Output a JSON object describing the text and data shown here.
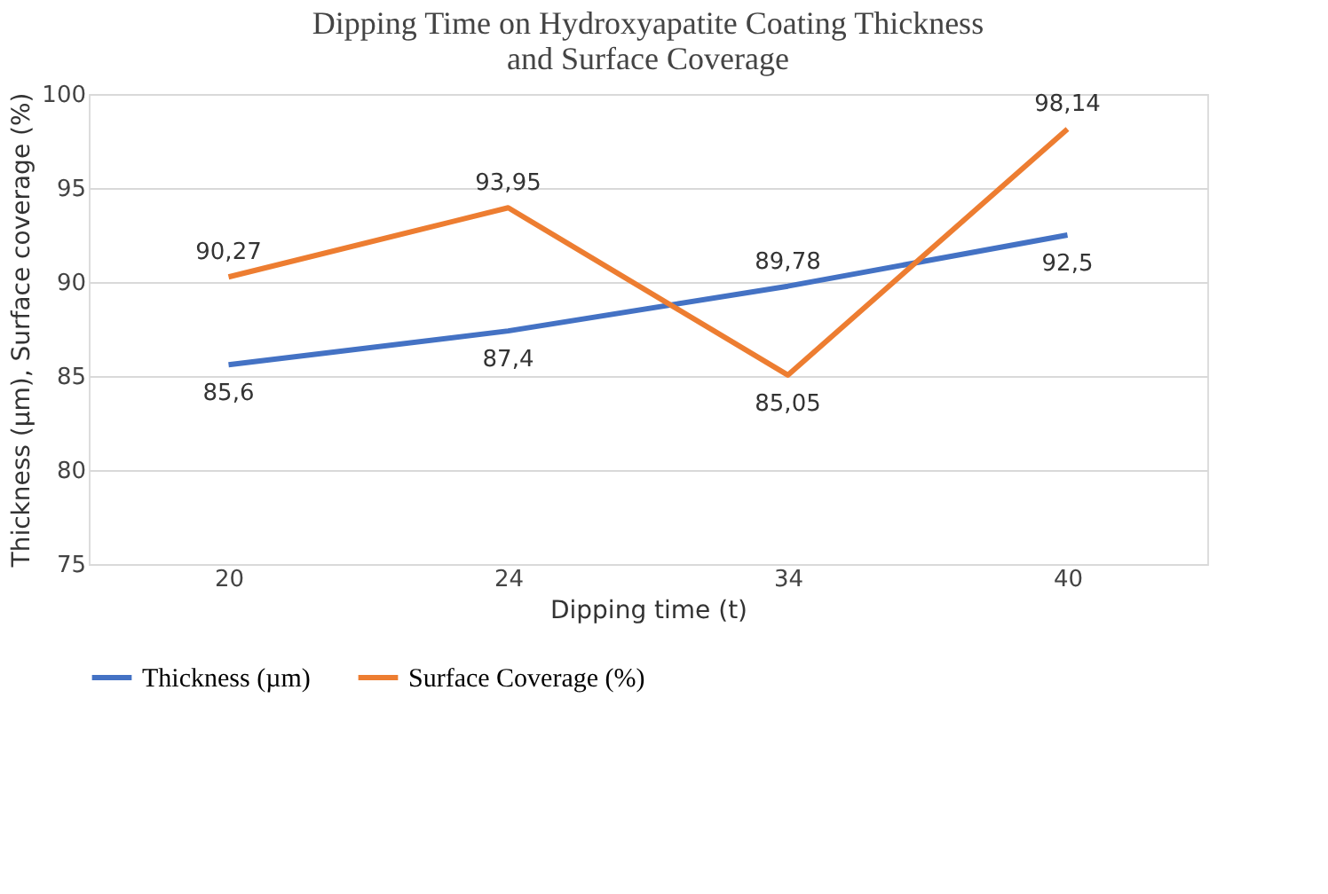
{
  "chart_data": {
    "type": "line",
    "title": "Dipping Time on Hydroxyapatite Coating Thickness and Surface Coverage",
    "xlabel": "Dipping time (t)",
    "ylabel": "Thickness (µm), Surface coverage (%)",
    "categories": [
      "20",
      "24",
      "34",
      "40"
    ],
    "series": [
      {
        "name": "Thickness (µm)",
        "color": "#4472c4",
        "values": [
          85.6,
          87.4,
          89.78,
          92.5
        ],
        "value_labels": [
          "85,6",
          "87,4",
          "89,78",
          "92,5"
        ]
      },
      {
        "name": "Surface Coverage (%)",
        "color": "#ed7d31",
        "values": [
          90.27,
          93.95,
          85.05,
          98.14
        ],
        "value_labels": [
          "90,27",
          "93,95",
          "85,05",
          "98,14"
        ]
      }
    ],
    "ylim": [
      75,
      100
    ],
    "yticks": [
      75,
      80,
      85,
      90,
      95,
      100
    ],
    "grid": "y",
    "legend": "bottom",
    "marker": "none",
    "line_style": "solid"
  }
}
